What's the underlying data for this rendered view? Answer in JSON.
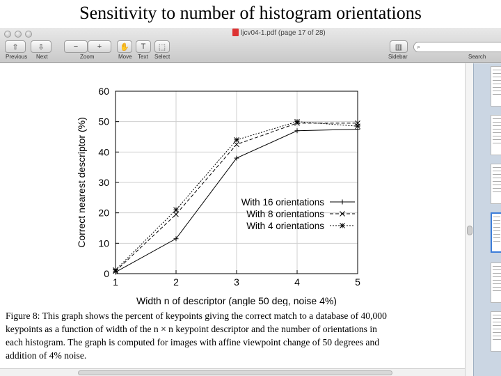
{
  "slide": {
    "title": "Sensitivity to number of histogram orientations"
  },
  "window": {
    "title": "ljcv04-1.pdf (page 17 of 28)",
    "toolbar": {
      "previous_label": "Previous",
      "next_label": "Next",
      "zoom_label": "Zoom",
      "move_label": "Move",
      "text_label": "Text",
      "select_label": "Select",
      "sidebar_label": "Sidebar",
      "search_label": "Search",
      "search_placeholder": ""
    }
  },
  "chart_data": {
    "type": "line",
    "x": [
      1,
      2,
      3,
      4,
      5
    ],
    "series": [
      {
        "name": "With 16 orientations",
        "values": [
          0.5,
          11.5,
          38,
          47,
          47.5
        ],
        "marker": "+",
        "dash": "solid"
      },
      {
        "name": "With 8 orientations",
        "values": [
          0.8,
          19.5,
          42.5,
          49.5,
          49.5
        ],
        "marker": "x",
        "dash": "dashed"
      },
      {
        "name": "With 4 orientations",
        "values": [
          1.2,
          21,
          44,
          50,
          48.5
        ],
        "marker": "*",
        "dash": "dotted"
      }
    ],
    "xlabel": "Width n of descriptor (angle 50 deg, noise 4%)",
    "ylabel": "Correct nearest descriptor (%)",
    "xlim": [
      1,
      5
    ],
    "ylim": [
      0,
      60
    ],
    "xticks": [
      1,
      2,
      3,
      4,
      5
    ],
    "yticks": [
      0,
      10,
      20,
      30,
      40,
      50,
      60
    ],
    "legend": "center-right"
  },
  "caption": {
    "line1": "Figure 8: This graph shows the percent of keypoints giving the correct match to a database of 40,000",
    "line2": "keypoints as a function of width of the n × n keypoint descriptor and the number of orientations in",
    "line3": "each histogram. The graph is computed for images with affine viewpoint change of 50 degrees and",
    "line4": "addition of 4% noise."
  },
  "colors": {
    "toolbar": "#d4d4d4",
    "sidebar": "#cbd6e3",
    "document": "#ffffff"
  }
}
